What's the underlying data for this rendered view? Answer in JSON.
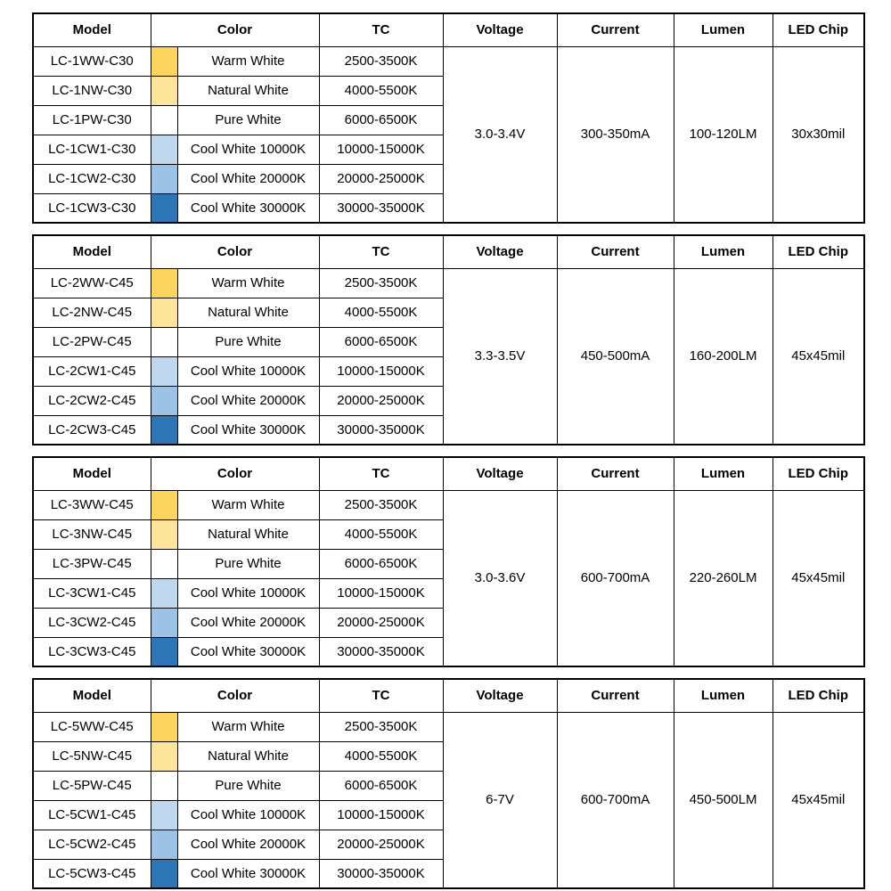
{
  "headers": [
    "Model",
    "Color",
    "TC",
    "Voltage",
    "Current",
    "Lumen",
    "LED Chip"
  ],
  "swatch_colors": {
    "warm_white": "#FCD55F",
    "natural_white": "#FCE49A",
    "pure_white": "#FFFFFF",
    "cool_white_10000k": "#BFD8EE",
    "cool_white_20000k": "#9CC2E5",
    "cool_white_30000k": "#2E75B6"
  },
  "tables": [
    {
      "voltage": "3.0-3.4V",
      "current": "300-350mA",
      "lumen": "100-120LM",
      "led_chip": "30x30mil",
      "rows": [
        {
          "model": "LC-1WW-C30",
          "color": "Warm White",
          "tc": "2500-3500K"
        },
        {
          "model": "LC-1NW-C30",
          "color": "Natural White",
          "tc": "4000-5500K"
        },
        {
          "model": "LC-1PW-C30",
          "color": "Pure White",
          "tc": "6000-6500K"
        },
        {
          "model": "LC-1CW1-C30",
          "color": "Cool White 10000K",
          "tc": "10000-15000K"
        },
        {
          "model": "LC-1CW2-C30",
          "color": "Cool White 20000K",
          "tc": "20000-25000K"
        },
        {
          "model": "LC-1CW3-C30",
          "color": "Cool White 30000K",
          "tc": "30000-35000K"
        }
      ]
    },
    {
      "voltage": "3.3-3.5V",
      "current": "450-500mA",
      "lumen": "160-200LM",
      "led_chip": "45x45mil",
      "rows": [
        {
          "model": "LC-2WW-C45",
          "color": "Warm White",
          "tc": "2500-3500K"
        },
        {
          "model": "LC-2NW-C45",
          "color": "Natural White",
          "tc": "4000-5500K"
        },
        {
          "model": "LC-2PW-C45",
          "color": "Pure White",
          "tc": "6000-6500K"
        },
        {
          "model": "LC-2CW1-C45",
          "color": "Cool White 10000K",
          "tc": "10000-15000K"
        },
        {
          "model": "LC-2CW2-C45",
          "color": "Cool White 20000K",
          "tc": "20000-25000K"
        },
        {
          "model": "LC-2CW3-C45",
          "color": "Cool White 30000K",
          "tc": "30000-35000K"
        }
      ]
    },
    {
      "voltage": "3.0-3.6V",
      "current": "600-700mA",
      "lumen": "220-260LM",
      "led_chip": "45x45mil",
      "rows": [
        {
          "model": "LC-3WW-C45",
          "color": "Warm White",
          "tc": "2500-3500K"
        },
        {
          "model": "LC-3NW-C45",
          "color": "Natural White",
          "tc": "4000-5500K"
        },
        {
          "model": "LC-3PW-C45",
          "color": "Pure White",
          "tc": "6000-6500K"
        },
        {
          "model": "LC-3CW1-C45",
          "color": "Cool White 10000K",
          "tc": "10000-15000K"
        },
        {
          "model": "LC-3CW2-C45",
          "color": "Cool White 20000K",
          "tc": "20000-25000K"
        },
        {
          "model": "LC-3CW3-C45",
          "color": "Cool White 30000K",
          "tc": "30000-35000K"
        }
      ]
    },
    {
      "voltage": "6-7V",
      "current": "600-700mA",
      "lumen": "450-500LM",
      "led_chip": "45x45mil",
      "rows": [
        {
          "model": "LC-5WW-C45",
          "color": "Warm White",
          "tc": "2500-3500K"
        },
        {
          "model": "LC-5NW-C45",
          "color": "Natural White",
          "tc": "4000-5500K"
        },
        {
          "model": "LC-5PW-C45",
          "color": "Pure White",
          "tc": "6000-6500K"
        },
        {
          "model": "LC-5CW1-C45",
          "color": "Cool White 10000K",
          "tc": "10000-15000K"
        },
        {
          "model": "LC-5CW2-C45",
          "color": "Cool White 20000K",
          "tc": "20000-25000K"
        },
        {
          "model": "LC-5CW3-C45",
          "color": "Cool White 30000K",
          "tc": "30000-35000K"
        }
      ]
    }
  ]
}
